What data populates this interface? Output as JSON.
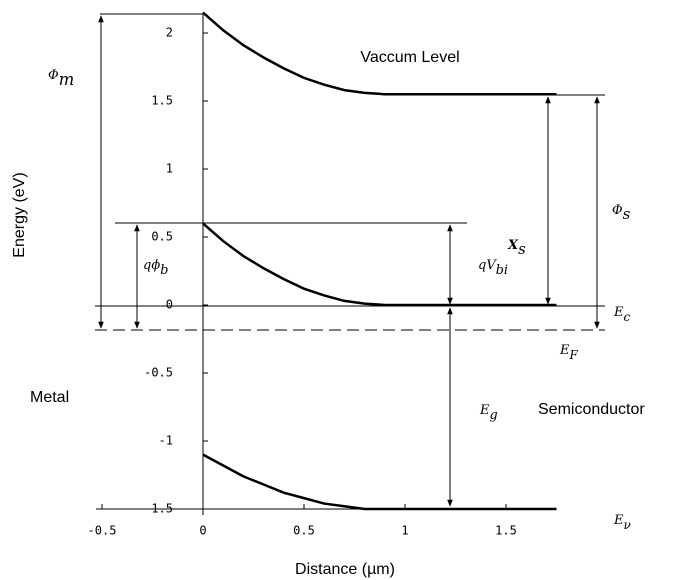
{
  "chart_data": {
    "type": "line",
    "xlabel": "Distance (µm)",
    "ylabel": "Energy (eV)",
    "xlim": [
      -0.5,
      1.75
    ],
    "ylim": [
      -1.5,
      2.15
    ],
    "xticks": [
      -0.5,
      0,
      0.5,
      1,
      1.5
    ],
    "yticks": [
      -1.5,
      -1,
      -0.5,
      0,
      0.5,
      1,
      1.5,
      2
    ],
    "x": [
      0,
      0.1,
      0.2,
      0.3,
      0.4,
      0.5,
      0.6,
      0.7,
      0.8,
      0.9,
      1.75
    ],
    "series": [
      {
        "name": "Vaccum Level",
        "color": "#000000",
        "values": [
          2.15,
          2.02,
          1.91,
          1.82,
          1.74,
          1.67,
          1.62,
          1.58,
          1.56,
          1.55,
          1.55
        ]
      },
      {
        "name": "Ec",
        "color": "#000000",
        "values": [
          0.6,
          0.47,
          0.36,
          0.27,
          0.19,
          0.12,
          0.07,
          0.03,
          0.01,
          0,
          0
        ]
      },
      {
        "name": "Ev",
        "color": "#000000",
        "values": [
          -1.1,
          -1.18,
          -1.26,
          -1.32,
          -1.38,
          -1.42,
          -1.46,
          -1.48,
          -1.5,
          -1.5,
          -1.5
        ]
      }
    ],
    "annotations": {
      "phi_m": {
        "main": "Φ",
        "sub": "m"
      },
      "phi_s": {
        "main": "Φ",
        "sub": "s"
      },
      "chi_s": {
        "main": "X",
        "sub": "s"
      },
      "q_phi_b": {
        "main": "qϕ",
        "sub": "b"
      },
      "q_vbi": {
        "main": "qV",
        "sub": "bi"
      },
      "e_c": {
        "main": "E",
        "sub": "c"
      },
      "e_f": {
        "main": "E",
        "sub": "F"
      },
      "e_v": {
        "main": "E",
        "sub": "ν"
      },
      "e_g": {
        "main": "E",
        "sub": "g"
      },
      "metal": "Metal",
      "semiconductor": "Semiconductor"
    }
  }
}
